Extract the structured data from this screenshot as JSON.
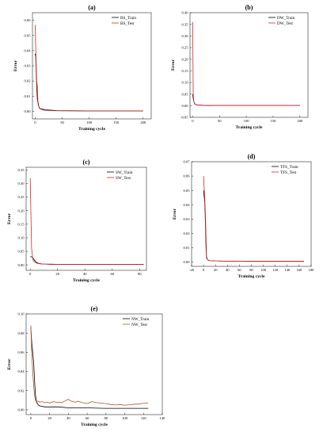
{
  "figure": {
    "panel_count": 5
  },
  "chart_data": [
    {
      "type": "line",
      "panel_label": "(a)",
      "xlabel": "Training cycle",
      "ylabel": "Error",
      "xlim": [
        -5,
        215
      ],
      "ylim": [
        -0.005,
        0.065
      ],
      "xticks": [
        0,
        50,
        100,
        150,
        200
      ],
      "yticks": [
        0.0,
        0.01,
        0.02,
        0.03,
        0.04,
        0.05,
        0.06
      ],
      "ytick_labels": [
        "0.00",
        "0.01",
        "0.02",
        "0.03",
        "0.04",
        "0.05",
        "0.06"
      ],
      "legend_position": "top-right",
      "grid": false,
      "series": [
        {
          "name": "BS_Train",
          "color": "#000000",
          "x": [
            0,
            1,
            2,
            3,
            4,
            6,
            8,
            12,
            20,
            40,
            100,
            200
          ],
          "y": [
            0.038,
            0.036,
            0.025,
            0.016,
            0.008,
            0.004,
            0.002,
            0.0015,
            0.001,
            0.0005,
            0.0003,
            0.0003
          ]
        },
        {
          "name": "BS_Test",
          "color": "#d62728",
          "x": [
            0,
            1,
            2,
            3,
            4,
            5,
            7,
            10,
            15,
            25,
            50,
            100,
            200
          ],
          "y": [
            0.057,
            0.043,
            0.028,
            0.02,
            0.016,
            0.007,
            0.003,
            0.0015,
            0.0008,
            0.0005,
            0.0003,
            0.0002,
            0.0002
          ]
        }
      ]
    },
    {
      "type": "line",
      "panel_label": "(b)",
      "xlabel": "Training cycle",
      "ylabel": "Error",
      "xlim": [
        -5,
        215
      ],
      "ylim": [
        -0.05,
        0.4
      ],
      "xticks": [
        0,
        50,
        100,
        150,
        200
      ],
      "yticks": [
        -0.05,
        0.0,
        0.05,
        0.1,
        0.15,
        0.2,
        0.25,
        0.3,
        0.35,
        0.4
      ],
      "ytick_labels": [
        "-0.05",
        "0.00",
        "0.05",
        "0.10",
        "0.15",
        "0.20",
        "0.25",
        "0.30",
        "0.35",
        "0.40"
      ],
      "legend_position": "top-right",
      "grid": false,
      "series": [
        {
          "name": "DW_Train",
          "color": "#000000",
          "x": [
            0,
            1,
            2,
            3,
            5,
            8,
            15,
            30,
            100,
            200
          ],
          "y": [
            0.05,
            0.03,
            0.02,
            0.012,
            0.006,
            0.003,
            0.002,
            0.001,
            0.001,
            0.001
          ]
        },
        {
          "name": "DW_Test",
          "color": "#d62728",
          "x": [
            0,
            1,
            2,
            3,
            5,
            10,
            20,
            50,
            100,
            200
          ],
          "y": [
            0.36,
            0.05,
            0.02,
            0.01,
            0.005,
            0.003,
            0.002,
            0.001,
            0.001,
            0.001
          ]
        }
      ]
    },
    {
      "type": "line",
      "panel_label": "(c)",
      "xlabel": "Training cycle",
      "ylabel": "Error",
      "xlim": [
        -3,
        85
      ],
      "ylim": [
        -0.02,
        0.36
      ],
      "xticks": [
        0,
        20,
        40,
        60,
        80
      ],
      "yticks": [
        0.0,
        0.05,
        0.1,
        0.15,
        0.2,
        0.25,
        0.3,
        0.35
      ],
      "ytick_labels": [
        "0.00",
        "0.05",
        "0.10",
        "0.15",
        "0.20",
        "0.25",
        "0.30",
        "0.35"
      ],
      "legend_position": "top-right",
      "grid": false,
      "series": [
        {
          "name": "SW_Train",
          "color": "#000000",
          "x": [
            0,
            1,
            2,
            3,
            4,
            5,
            6,
            8,
            10,
            15,
            20,
            40,
            60,
            83
          ],
          "y": [
            0.03,
            0.03,
            0.025,
            0.018,
            0.012,
            0.008,
            0.006,
            0.004,
            0.003,
            0.002,
            0.002,
            0.0015,
            0.0015,
            0.0015
          ]
        },
        {
          "name": "SW_Test",
          "color": "#d62728",
          "x": [
            0,
            1,
            2,
            3,
            4,
            5,
            7,
            10,
            15,
            20,
            40,
            60,
            83
          ],
          "y": [
            0.32,
            0.06,
            0.018,
            0.012,
            0.008,
            0.006,
            0.004,
            0.003,
            0.003,
            0.002,
            0.002,
            0.002,
            0.002
          ]
        }
      ]
    },
    {
      "type": "line",
      "panel_label": "(d)",
      "xlabel": "Training cycle",
      "ylabel": "Error",
      "xlim": [
        -20,
        180
      ],
      "ylim": [
        -0.003,
        0.07
      ],
      "xticks": [
        -20,
        0,
        20,
        40,
        60,
        80,
        100,
        120,
        140,
        160,
        180
      ],
      "yticks": [
        0.0,
        0.01,
        0.02,
        0.03,
        0.04,
        0.05,
        0.06,
        0.07
      ],
      "ytick_labels": [
        "0.00",
        "0.01",
        "0.02",
        "0.03",
        "0.04",
        "0.05",
        "0.06",
        "0.07"
      ],
      "legend_position": "top-right",
      "grid": false,
      "series": [
        {
          "name": "TFS_Train",
          "color": "#000000",
          "x": [
            0,
            2,
            3,
            4,
            5,
            7,
            10,
            20,
            40,
            80,
            120,
            168
          ],
          "y": [
            0.05,
            0.042,
            0.03,
            0.012,
            0.003,
            0.0015,
            0.001,
            0.0008,
            0.0006,
            0.0005,
            0.0005,
            0.0005
          ]
        },
        {
          "name": "TFS_Test",
          "color": "#d62728",
          "x": [
            0,
            1,
            2,
            3,
            4,
            5,
            7,
            10,
            20,
            40,
            80,
            120,
            168
          ],
          "y": [
            0.06,
            0.052,
            0.045,
            0.035,
            0.02,
            0.004,
            0.0015,
            0.001,
            0.0008,
            0.0006,
            0.0005,
            0.0005,
            0.0005
          ]
        }
      ]
    },
    {
      "type": "line",
      "panel_label": "(e)",
      "xlabel": "Training cycle",
      "ylabel": "Error",
      "xlim": [
        -5,
        140
      ],
      "ylim": [
        -0.005,
        0.1
      ],
      "xticks": [
        0,
        20,
        40,
        60,
        80,
        100,
        120,
        140
      ],
      "yticks": [
        0.0,
        0.02,
        0.04,
        0.06,
        0.08,
        0.1
      ],
      "ytick_labels": [
        "0.00",
        "0.02",
        "0.04",
        "0.06",
        "0.08",
        "0.10"
      ],
      "legend_position": "top-right",
      "grid": false,
      "series": [
        {
          "name": "NW_Train",
          "color": "#000000",
          "x": [
            0,
            1,
            2,
            3,
            4,
            5,
            6,
            8,
            10,
            15,
            20,
            30,
            40,
            60,
            80,
            100,
            125
          ],
          "y": [
            0.086,
            0.07,
            0.06,
            0.05,
            0.03,
            0.015,
            0.008,
            0.005,
            0.004,
            0.003,
            0.003,
            0.003,
            0.002,
            0.002,
            0.0015,
            0.0015,
            0.0015
          ]
        },
        {
          "name": "NW_Test",
          "color": "#b5532b",
          "x": [
            0,
            1,
            2,
            3,
            4,
            5,
            6,
            7,
            8,
            10,
            12,
            15,
            18,
            20,
            22,
            25,
            28,
            30,
            33,
            36,
            40,
            42,
            45,
            48,
            50,
            55,
            60,
            65,
            70,
            75,
            80,
            85,
            90,
            95,
            100,
            105,
            110,
            115,
            120,
            125
          ],
          "y": [
            0.088,
            0.058,
            0.04,
            0.025,
            0.015,
            0.01,
            0.008,
            0.009,
            0.009,
            0.008,
            0.0085,
            0.0075,
            0.008,
            0.007,
            0.008,
            0.0085,
            0.0075,
            0.008,
            0.0075,
            0.009,
            0.011,
            0.0095,
            0.0085,
            0.008,
            0.009,
            0.0075,
            0.0065,
            0.0085,
            0.0075,
            0.007,
            0.0065,
            0.0055,
            0.005,
            0.0055,
            0.0048,
            0.0052,
            0.0058,
            0.006,
            0.0068,
            0.0072
          ]
        }
      ]
    }
  ]
}
